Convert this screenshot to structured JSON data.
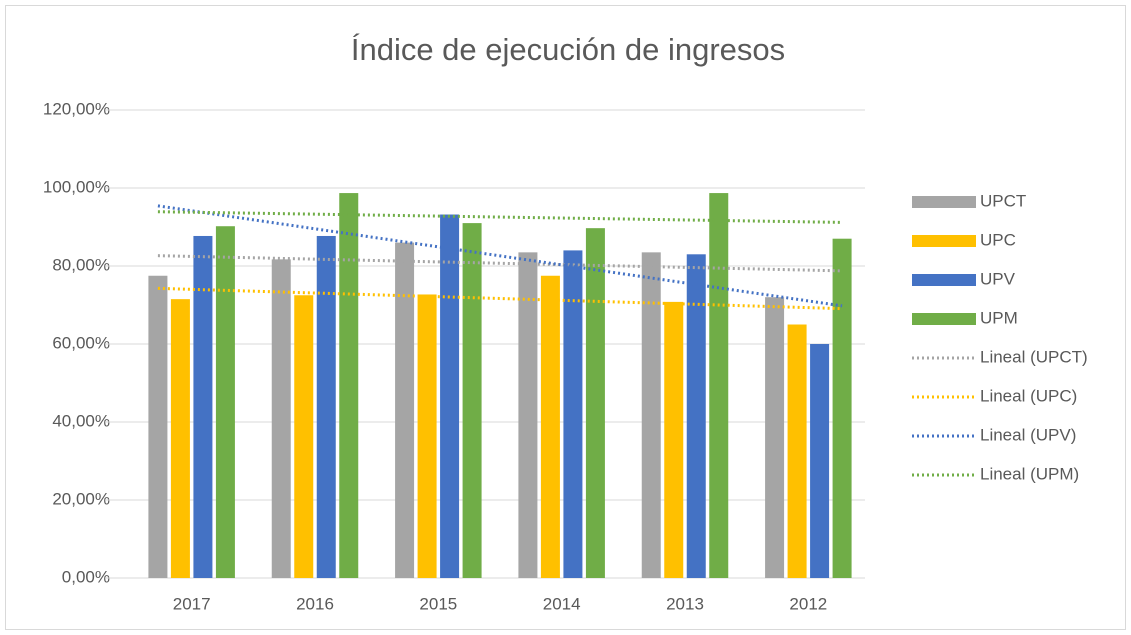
{
  "chart_data": {
    "type": "bar",
    "title": "Índice de ejecución de ingresos",
    "categories": [
      "2017",
      "2016",
      "2015",
      "2014",
      "2013",
      "2012"
    ],
    "series": [
      {
        "name": "UPCT",
        "color": "#a5a5a5",
        "values": [
          77.5,
          81.7,
          86,
          83.5,
          83.5,
          72
        ]
      },
      {
        "name": "UPC",
        "color": "#ffc000",
        "values": [
          71.5,
          72.5,
          72.7,
          77.5,
          70.8,
          65
        ]
      },
      {
        "name": "UPV",
        "color": "#4472c4",
        "values": [
          87.7,
          87.7,
          93.2,
          84,
          83,
          60
        ]
      },
      {
        "name": "UPM",
        "color": "#70ad47",
        "values": [
          90.2,
          98.7,
          91,
          89.7,
          98.7,
          87
        ]
      }
    ],
    "trendlines": [
      "Lineal (UPCT)",
      "Lineal (UPC)",
      "Lineal (UPV)",
      "Lineal (UPM)"
    ],
    "ylim": [
      0,
      120
    ],
    "yticks": [
      {
        "value": 0,
        "label": "0,00%"
      },
      {
        "value": 20,
        "label": "20,00%"
      },
      {
        "value": 40,
        "label": "40,00%"
      },
      {
        "value": 60,
        "label": "60,00%"
      },
      {
        "value": 80,
        "label": "80,00%"
      },
      {
        "value": 100,
        "label": "100,00%"
      },
      {
        "value": 120,
        "label": "120,00%"
      }
    ],
    "grid": true,
    "legend": "right"
  }
}
